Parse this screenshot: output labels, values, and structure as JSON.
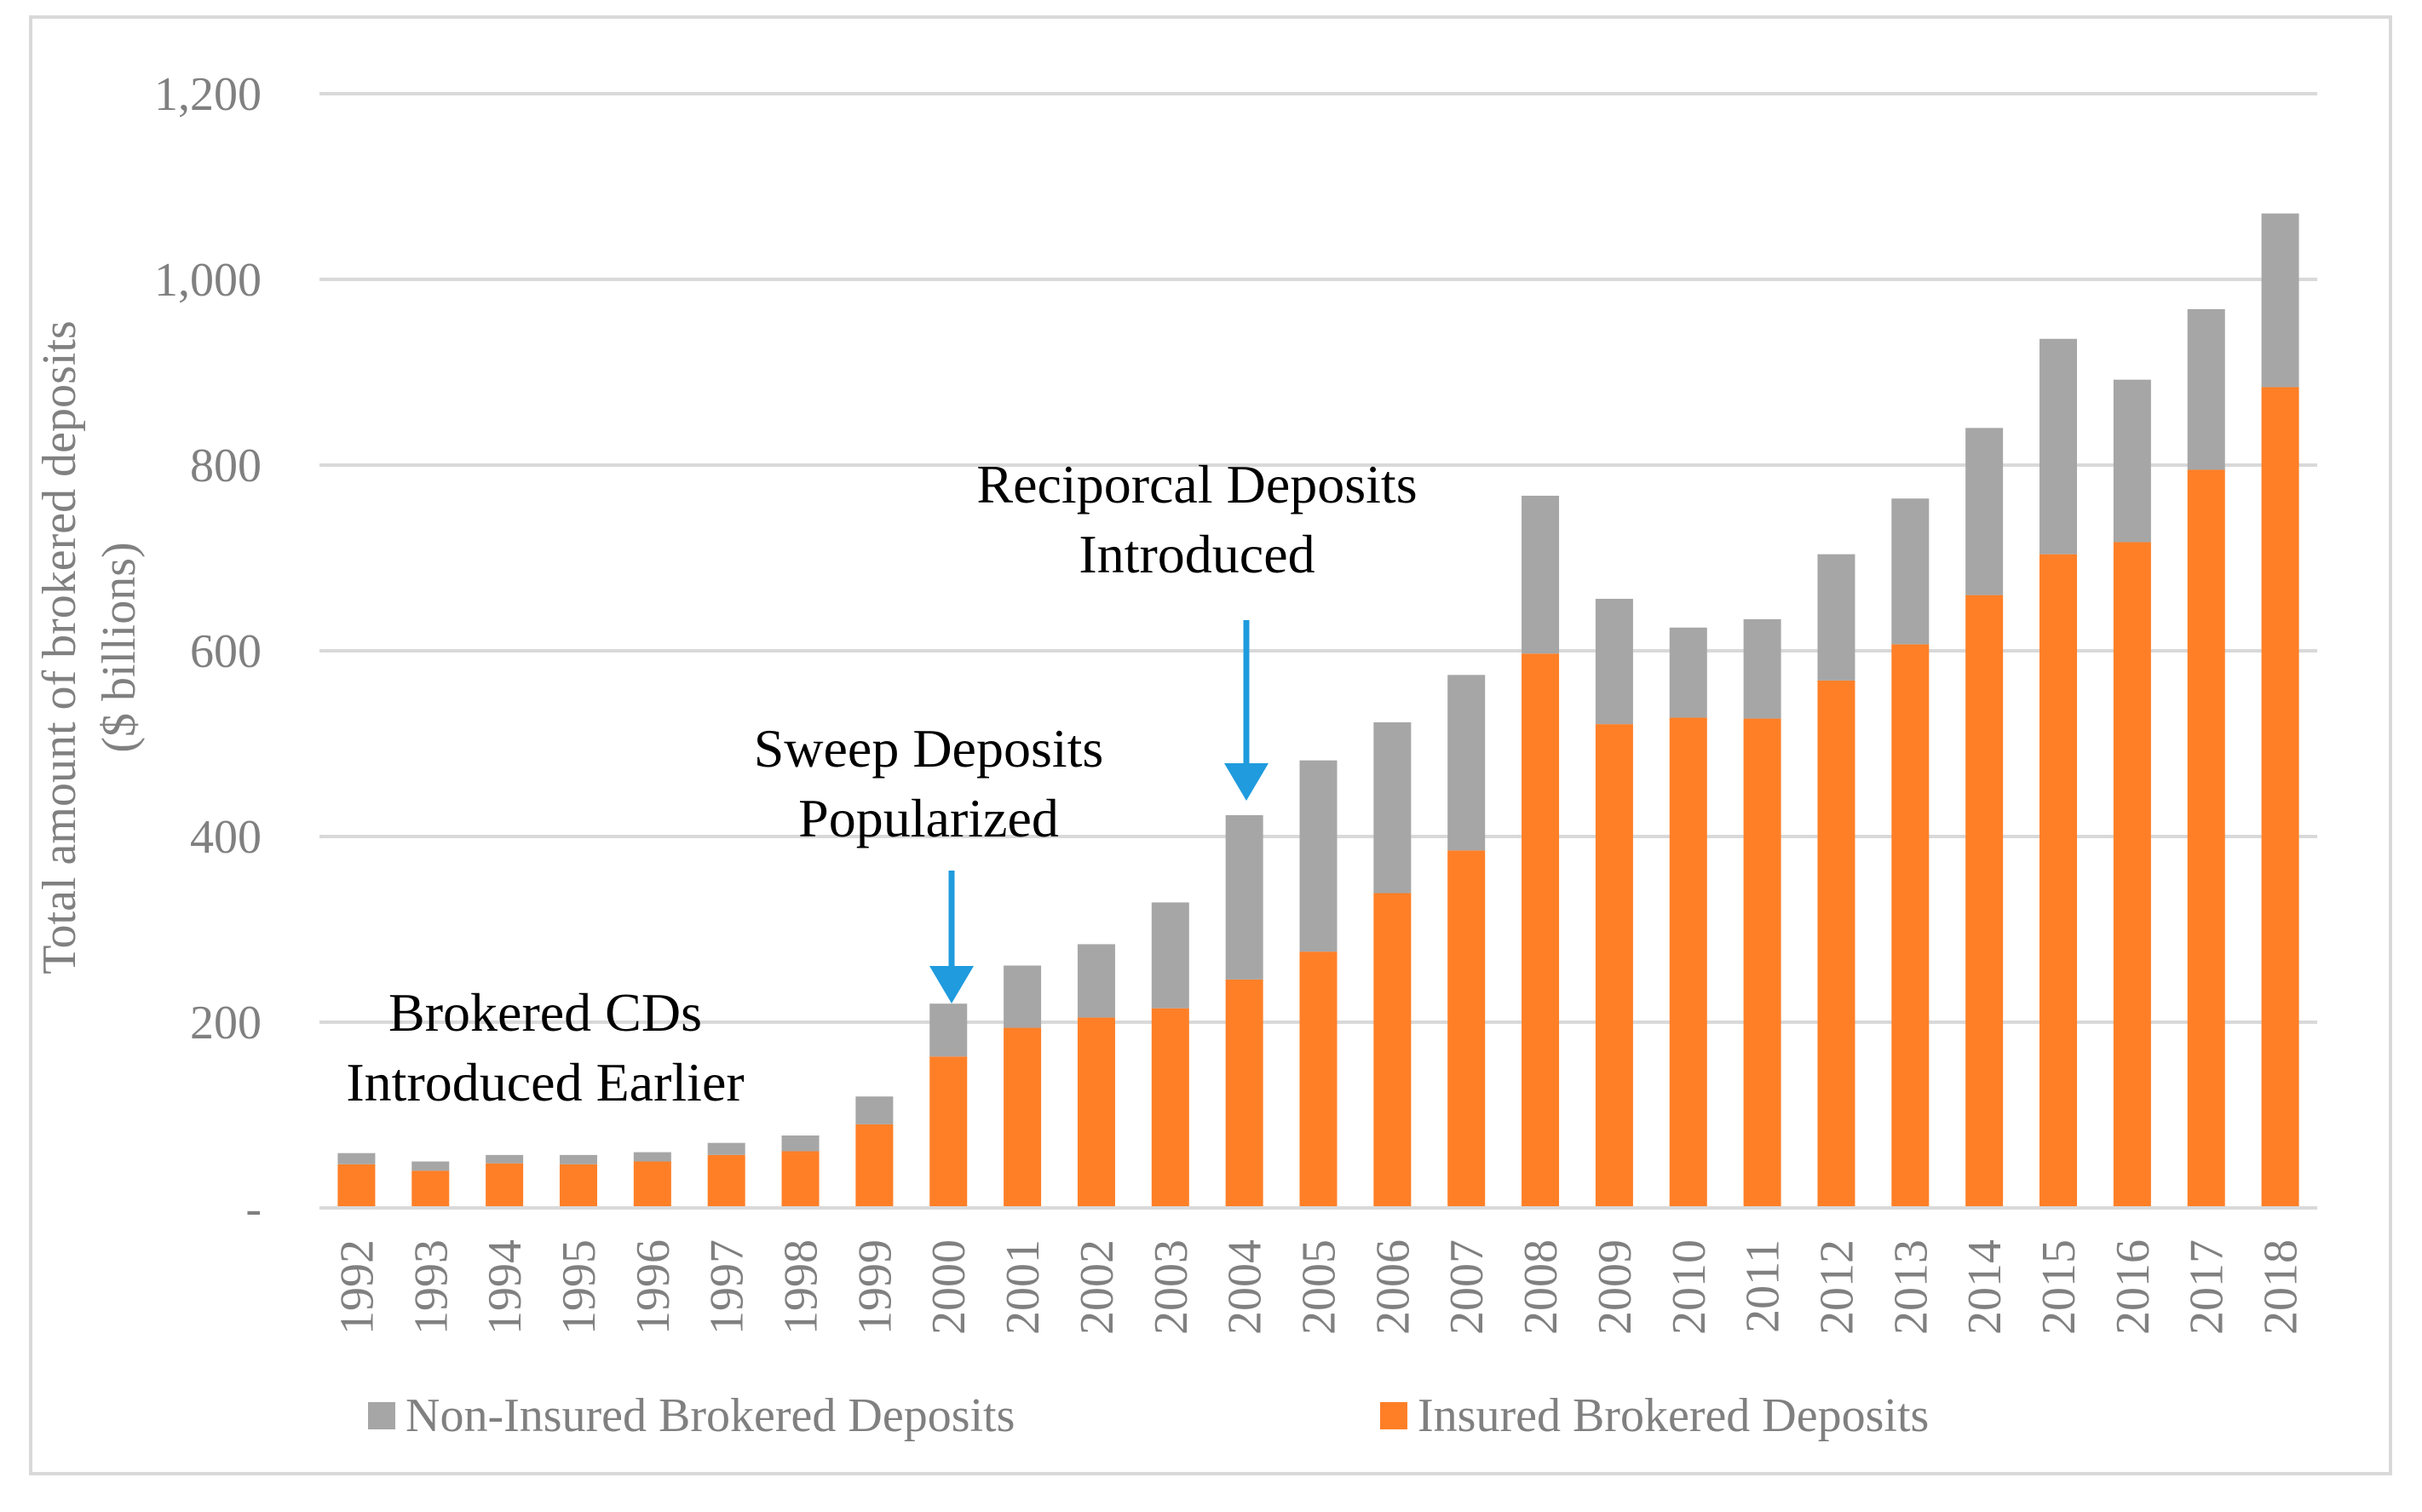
{
  "chart_data": {
    "type": "bar",
    "stacked": true,
    "categories": [
      "1992",
      "1993",
      "1994",
      "1995",
      "1996",
      "1997",
      "1998",
      "1999",
      "2000",
      "2001",
      "2002",
      "2003",
      "2004",
      "2005",
      "2006",
      "2007",
      "2008",
      "2009",
      "2010",
      "2011",
      "2012",
      "2013",
      "2014",
      "2015",
      "2016",
      "2017",
      "2018"
    ],
    "series": [
      {
        "name": "Insured Brokered Deposits",
        "color": "#FF7F27",
        "values": [
          47,
          40,
          48,
          47,
          50,
          57,
          61,
          90,
          163,
          194,
          205,
          215,
          246,
          276,
          339,
          385,
          597,
          521,
          528,
          527,
          568,
          607,
          660,
          704,
          717,
          795,
          884
        ]
      },
      {
        "name": "Non-Insured Brokered Deposits",
        "color": "#A6A6A6",
        "values": [
          12,
          10,
          9,
          10,
          10,
          13,
          17,
          30,
          57,
          67,
          79,
          114,
          177,
          206,
          184,
          189,
          170,
          135,
          97,
          107,
          136,
          157,
          180,
          232,
          175,
          173,
          187
        ]
      }
    ],
    "ylabel": "Total amount of brokered deposits ($ billions)",
    "ylabel_lines": [
      "Total amount of brokered deposits",
      "($ billions)"
    ],
    "ylim": [
      0,
      1200
    ],
    "yticks": [
      0,
      200,
      400,
      600,
      800,
      1000,
      1200
    ],
    "ytick_labels": [
      "-",
      "200",
      "400",
      "600",
      "800",
      "1,000",
      "1,200"
    ],
    "grid": true,
    "legend": {
      "placement": "bottom",
      "items": [
        "Non-Insured Brokered Deposits",
        "Insured Brokered Deposits"
      ]
    },
    "annotations": [
      {
        "lines": [
          "Brokered CDs",
          "Introduced Earlier"
        ],
        "year": "1992",
        "arrow": false
      },
      {
        "lines": [
          "Sweep Deposits",
          "Popularized"
        ],
        "year": "2000",
        "arrow": true,
        "arrow_color": "#1F9BDE"
      },
      {
        "lines": [
          "Reciporcal Deposits",
          "Introduced"
        ],
        "year": "2004",
        "arrow": true,
        "arrow_color": "#1F9BDE"
      }
    ]
  }
}
